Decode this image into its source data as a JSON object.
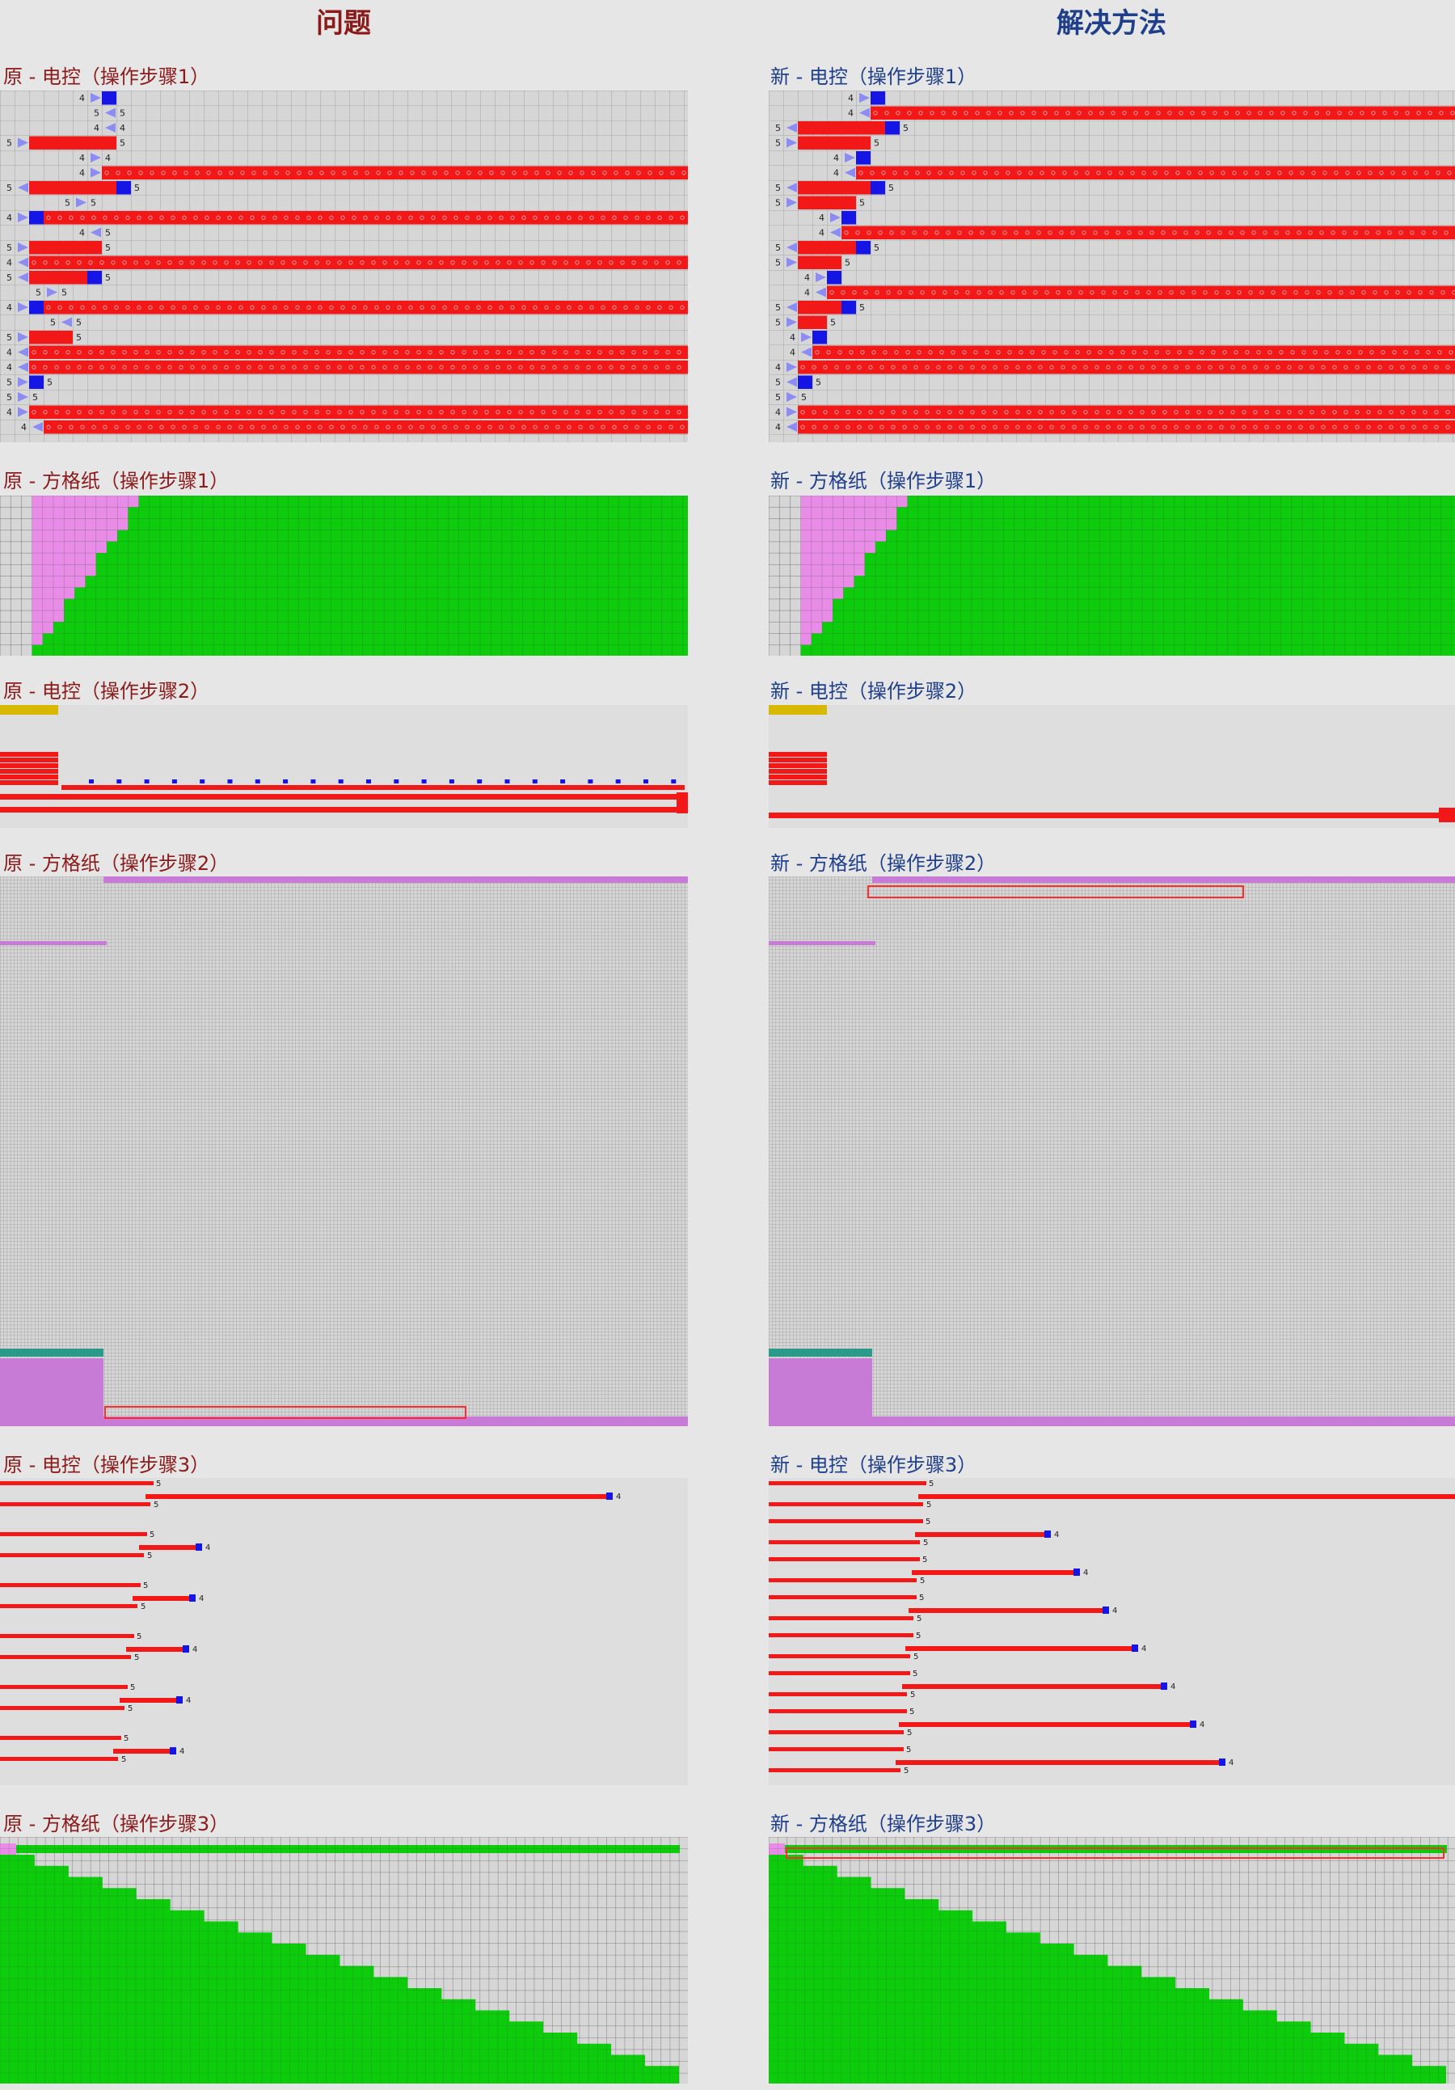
{
  "colors": {
    "left_heading": "#8b1a1a",
    "right_heading": "#1f3f8b",
    "grid_bg": "#d6d6d6",
    "grid_line": "#9a9a9a",
    "red_bar": "#f21818",
    "blue_cell": "#1515e6",
    "arrow": "#8c8cf5",
    "pink": "#e88ce8",
    "green": "#0ccc0c",
    "purple": "#c77ad6",
    "teal": "#2a9a8a",
    "highlight_box": "#ff2a2a"
  },
  "headings": {
    "left": "问题",
    "right": "解决方法"
  },
  "sections": [
    {
      "left": "原 - 电控（操作步骤1）",
      "right": "新 - 电控（操作步骤1）"
    },
    {
      "left": "原 - 方格纸（操作步骤1）",
      "right": "新 - 方格纸（操作步骤1）"
    },
    {
      "left": "原 - 电控（操作步骤2）",
      "right": "新 - 电控（操作步骤2）"
    },
    {
      "left": "原 - 方格纸（操作步骤2）",
      "right": "新 - 方格纸（操作步骤2）"
    },
    {
      "left": "原 - 电控（操作步骤3）",
      "right": "新 - 电控（操作步骤3）"
    },
    {
      "left": "原 - 方格纸（操作步骤3）",
      "right": "新 - 方格纸（操作步骤3）"
    }
  ],
  "panels": {
    "ec1_left": {
      "rows": [
        {
          "n": "4",
          "c": 6,
          "arrow": "r",
          "blue": true
        },
        {
          "n": "5",
          "c": 7,
          "arrow": "l",
          "n2": "5"
        },
        {
          "n": "4",
          "c": 7,
          "arrow": "l",
          "n2": "4"
        },
        {
          "n": "5",
          "c": 1,
          "arrow": "r",
          "red_to": 7,
          "n2": "5"
        },
        {
          "n": "4",
          "c": 6,
          "arrow": "r",
          "n2": "4"
        },
        {
          "n": "4",
          "c": 6,
          "arrow": "r",
          "red_full": true
        },
        {
          "n": "5",
          "c": 1,
          "arrow": "l",
          "red_to": 7,
          "blue": true,
          "n2": "5"
        },
        {
          "n": "5",
          "c": 5,
          "arrow": "r",
          "n2": "5"
        },
        {
          "n": "4",
          "c": 1,
          "arrow": "r",
          "red_full": true,
          "blue": true
        },
        {
          "n": "4",
          "c": 6,
          "arrow": "l",
          "n2": "5"
        },
        {
          "n": "5",
          "c": 1,
          "arrow": "r",
          "red_to": 6,
          "n2": "5"
        },
        {
          "n": "4",
          "c": 1,
          "arrow": "l",
          "red_full": true
        },
        {
          "n": "5",
          "c": 1,
          "arrow": "l",
          "red_to": 5,
          "blue": true,
          "n2": "5"
        },
        {
          "n": "5",
          "c": 3,
          "arrow": "r",
          "n2": "5"
        },
        {
          "n": "4",
          "c": 1,
          "arrow": "r",
          "red_full": true,
          "blue": true
        },
        {
          "n": "5",
          "c": 4,
          "arrow": "l",
          "n2": "5"
        },
        {
          "n": "5",
          "c": 1,
          "arrow": "r",
          "red_to": 4,
          "n2": "5"
        },
        {
          "n": "4",
          "c": 1,
          "arrow": "l",
          "red_full": true
        },
        {
          "n": "4",
          "c": 1,
          "arrow": "l",
          "red_full": true
        },
        {
          "n": "5",
          "c": 1,
          "arrow": "r",
          "blue": true,
          "n2": "5"
        },
        {
          "n": "5",
          "c": 1,
          "arrow": "r",
          "n2": "5"
        },
        {
          "n": "4",
          "c": 1,
          "arrow": "r",
          "red_full": true
        },
        {
          "n": "4",
          "c": 2,
          "arrow": "l",
          "red_full": true
        }
      ]
    },
    "ec1_right": {
      "rows": [
        {
          "n": "4",
          "c": 6,
          "arrow": "r",
          "blue": true
        },
        {
          "n": "4",
          "c": 6,
          "arrow": "l",
          "red_full": true
        },
        {
          "n": "5",
          "c": 1,
          "arrow": "l",
          "red_to": 7,
          "blue": true,
          "n2": "5"
        },
        {
          "n": "5",
          "c": 1,
          "arrow": "r",
          "red_to": 6,
          "n2": "5"
        },
        {
          "n": "4",
          "c": 5,
          "arrow": "r",
          "blue": true
        },
        {
          "n": "4",
          "c": 5,
          "arrow": "l",
          "red_full": true
        },
        {
          "n": "5",
          "c": 1,
          "arrow": "l",
          "red_to": 6,
          "blue": true,
          "n2": "5"
        },
        {
          "n": "5",
          "c": 1,
          "arrow": "r",
          "red_to": 5,
          "n2": "5"
        },
        {
          "n": "4",
          "c": 4,
          "arrow": "r",
          "blue": true
        },
        {
          "n": "4",
          "c": 4,
          "arrow": "l",
          "red_full": true
        },
        {
          "n": "5",
          "c": 1,
          "arrow": "l",
          "red_to": 5,
          "blue": true,
          "n2": "5"
        },
        {
          "n": "5",
          "c": 1,
          "arrow": "r",
          "red_to": 4,
          "n2": "5"
        },
        {
          "n": "4",
          "c": 3,
          "arrow": "r",
          "blue": true
        },
        {
          "n": "4",
          "c": 3,
          "arrow": "l",
          "red_full": true
        },
        {
          "n": "5",
          "c": 1,
          "arrow": "l",
          "red_to": 4,
          "blue": true,
          "n2": "5"
        },
        {
          "n": "5",
          "c": 1,
          "arrow": "r",
          "red_to": 3,
          "n2": "5"
        },
        {
          "n": "4",
          "c": 2,
          "arrow": "r",
          "blue": true
        },
        {
          "n": "4",
          "c": 2,
          "arrow": "l",
          "red_full": true
        },
        {
          "n": "4",
          "c": 1,
          "arrow": "r",
          "red_full": true
        },
        {
          "n": "5",
          "c": 1,
          "arrow": "l",
          "blue": true,
          "n2": "5"
        },
        {
          "n": "5",
          "c": 1,
          "arrow": "r",
          "n2": "5"
        },
        {
          "n": "4",
          "c": 1,
          "arrow": "r",
          "red_full": true
        },
        {
          "n": "4",
          "c": 1,
          "arrow": "l",
          "red_full": true
        }
      ]
    },
    "ec3_num": "4",
    "ec3_num2": "5"
  }
}
